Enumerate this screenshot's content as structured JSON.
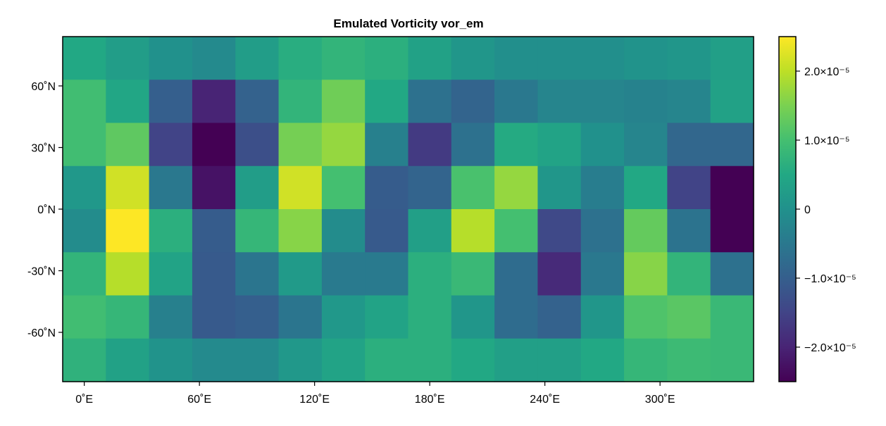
{
  "chart_data": {
    "type": "heatmap",
    "title": "Emulated Vorticity vor_em",
    "xlabel": "",
    "ylabel": "",
    "colormap": "viridis",
    "color_range": [
      -2.5e-05,
      2.5e-05
    ],
    "x": [
      0,
      22.5,
      45,
      67.5,
      90,
      112.5,
      135,
      157.5,
      180,
      202.5,
      225,
      247.5,
      270,
      292.5,
      315,
      337.5
    ],
    "y": [
      73.5,
      52.5,
      31.5,
      10.5,
      -10.5,
      -31.5,
      -52.5,
      -73.5
    ],
    "xlim": [
      -11.25,
      348.75
    ],
    "ylim": [
      -84,
      84
    ],
    "x_ticks": [
      0,
      60,
      120,
      180,
      240,
      300
    ],
    "x_tick_labels": [
      "0˚E",
      "60˚E",
      "120˚E",
      "180˚E",
      "240˚E",
      "300˚E"
    ],
    "y_ticks": [
      60,
      30,
      0,
      -30,
      -60
    ],
    "y_tick_labels": [
      "60˚N",
      "30˚N",
      "0˚N",
      "-30˚N",
      "-60˚N"
    ],
    "colorbar_ticks": [
      2e-05,
      1e-05,
      0,
      -1e-05,
      -2e-05
    ],
    "colorbar_tick_labels": [
      "2.0×10⁻⁵",
      "1.0×10⁻⁵",
      "0",
      "−1.0×10⁻⁵",
      "−2.0×10⁻⁵"
    ],
    "values": [
      [
        5e-06,
        2.5e-06,
        0.0,
        -1.5e-06,
        2.5e-06,
        6e-06,
        7.5e-06,
        6.5e-06,
        3.5e-06,
        1e-06,
        -5e-07,
        -5e-07,
        -5e-07,
        5e-07,
        1e-06,
        3e-06
      ],
      [
        9.5e-06,
        4.5e-06,
        -1e-05,
        -2e-05,
        -9.5e-06,
        7.5e-06,
        1.4e-05,
        5e-06,
        -6.5e-06,
        -9e-06,
        -5e-06,
        -2.5e-06,
        -2.5e-06,
        -3e-06,
        -2.5e-06,
        3.5e-06
      ],
      [
        9.5e-06,
        1.25e-05,
        -1.5e-05,
        -2.5e-05,
        -1.3e-05,
        1.45e-05,
        1.7e-05,
        -3.5e-06,
        -1.65e-05,
        -6.5e-06,
        5.5e-06,
        4e-06,
        0.0,
        -2.5e-06,
        -8.5e-06,
        -8.5e-06
      ],
      [
        1.5e-06,
        2.15e-05,
        -5e-06,
        -2.25e-05,
        2.5e-06,
        2.15e-05,
        1e-05,
        -1.05e-05,
        -9e-06,
        1.05e-05,
        1.7e-05,
        1e-06,
        -4e-06,
        5e-06,
        -1.5e-05,
        -2.5e-05
      ],
      [
        -1e-06,
        2.5e-05,
        6.5e-06,
        -1.05e-05,
        8e-06,
        1.6e-05,
        -1e-06,
        -1.1e-05,
        3e-06,
        1.95e-05,
        1e-05,
        -1.4e-05,
        -6.5e-06,
        1.3e-05,
        -6e-06,
        -2.5e-05
      ],
      [
        7.5e-06,
        1.95e-05,
        4e-06,
        -1.1e-05,
        -5.5e-06,
        2e-06,
        -4.5e-06,
        -4.5e-06,
        6.5e-06,
        8.5e-06,
        -7.5e-06,
        -1.9e-05,
        -5e-06,
        1.6e-05,
        7.5e-06,
        -6.5e-06
      ],
      [
        9.5e-06,
        8e-06,
        -3.5e-06,
        -1.1e-05,
        -1e-05,
        -5.5e-06,
        1.5e-06,
        4e-06,
        6.5e-06,
        1e-06,
        -7.5e-06,
        -9.5e-06,
        1e-06,
        1.1e-05,
        1.2e-05,
        8.5e-06
      ],
      [
        7e-06,
        3.5e-06,
        5e-07,
        -1.5e-06,
        -1.5e-06,
        1.5e-06,
        4e-06,
        6.5e-06,
        6.5e-06,
        5e-06,
        3e-06,
        3e-06,
        5e-06,
        8e-06,
        9e-06,
        8.5e-06
      ]
    ]
  }
}
